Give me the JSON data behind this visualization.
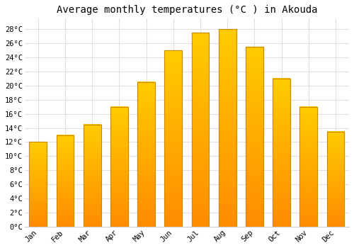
{
  "months": [
    "Jan",
    "Feb",
    "Mar",
    "Apr",
    "May",
    "Jun",
    "Jul",
    "Aug",
    "Sep",
    "Oct",
    "Nov",
    "Dec"
  ],
  "temperatures": [
    12,
    13,
    14.5,
    17,
    20.5,
    25,
    27.5,
    28,
    25.5,
    21,
    17,
    13.5
  ],
  "bar_color_top": "#FFCC00",
  "bar_color_bottom": "#FF8C00",
  "bar_edge_color": "#CC8800",
  "title": "Average monthly temperatures (°C ) in Akouda",
  "ylim": [
    0,
    29.5
  ],
  "yticks": [
    0,
    2,
    4,
    6,
    8,
    10,
    12,
    14,
    16,
    18,
    20,
    22,
    24,
    26,
    28
  ],
  "ytick_labels": [
    "0°C",
    "2°C",
    "4°C",
    "6°C",
    "8°C",
    "10°C",
    "12°C",
    "14°C",
    "16°C",
    "18°C",
    "20°C",
    "22°C",
    "24°C",
    "26°C",
    "28°C"
  ],
  "background_color": "#ffffff",
  "plot_bg_color": "#ffffff",
  "grid_color": "#e0e0e0",
  "title_fontsize": 10,
  "tick_fontsize": 7.5,
  "font_family": "monospace",
  "bar_width": 0.65
}
